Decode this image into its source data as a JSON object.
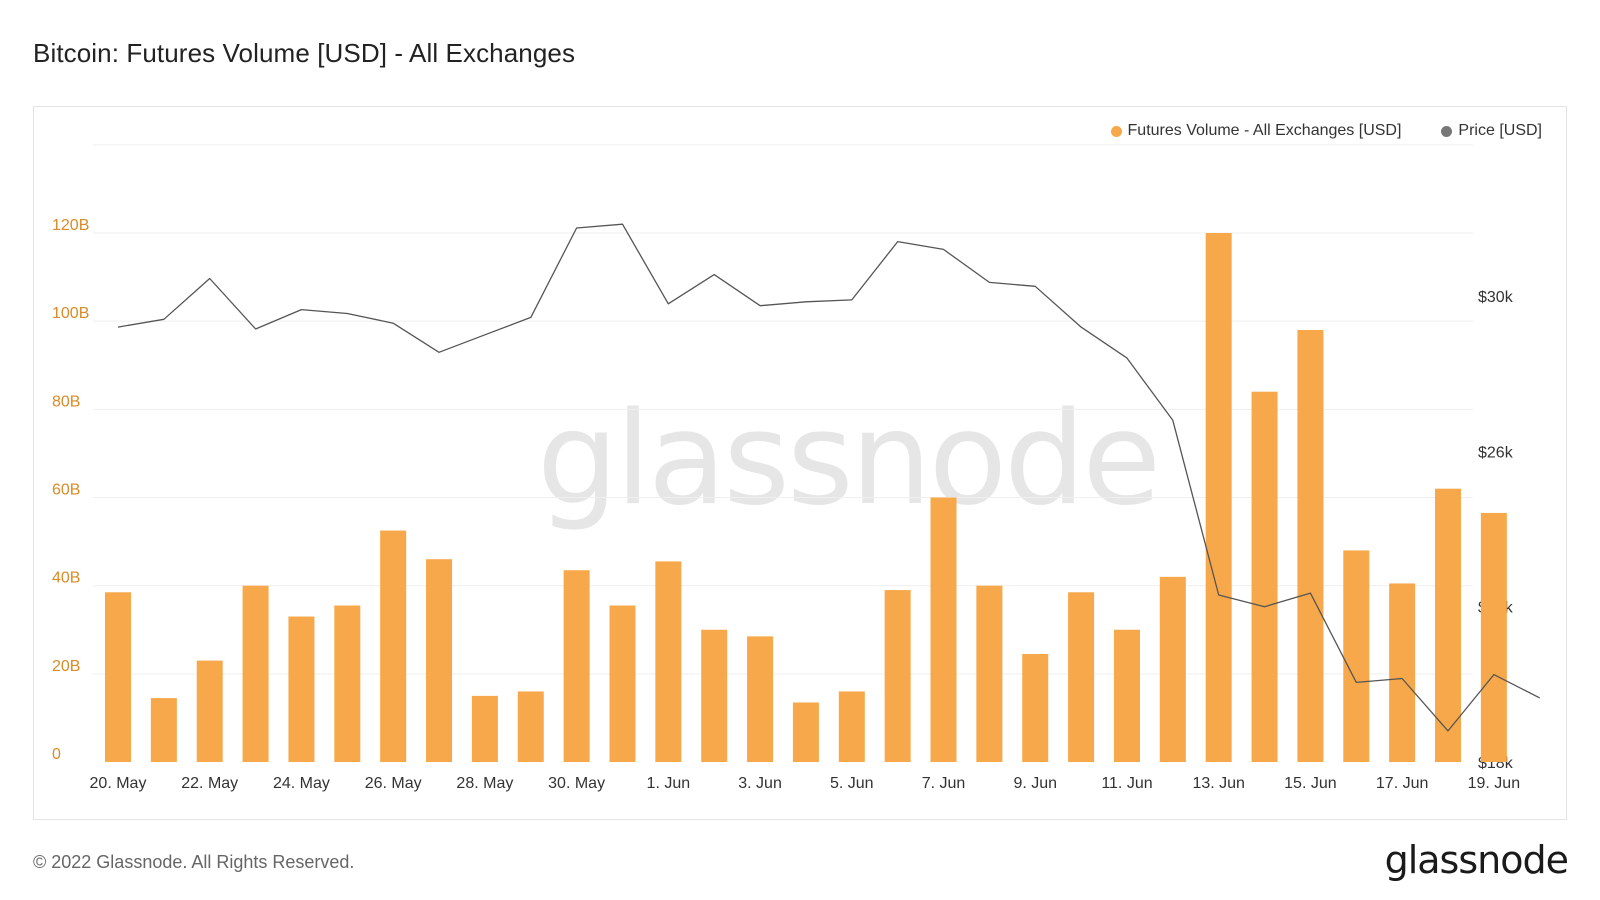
{
  "title": "Bitcoin: Futures Volume [USD] - All Exchanges",
  "legend": {
    "volume_label": "Futures Volume - All Exchanges [USD]",
    "price_label": "Price [USD]"
  },
  "watermark": "glassnode",
  "footer": {
    "copyright": "© 2022 Glassnode. All Rights Reserved.",
    "logo": "glassnode"
  },
  "colors": {
    "bar": "#f7a84a",
    "line": "#555555",
    "left_axis": "#d98b25",
    "right_axis": "#333333"
  },
  "chart_data": {
    "type": "bar",
    "x": [
      "2022-05-20",
      "2022-05-21",
      "2022-05-22",
      "2022-05-23",
      "2022-05-24",
      "2022-05-25",
      "2022-05-26",
      "2022-05-27",
      "2022-05-28",
      "2022-05-29",
      "2022-05-30",
      "2022-05-31",
      "2022-06-01",
      "2022-06-02",
      "2022-06-03",
      "2022-06-04",
      "2022-06-05",
      "2022-06-06",
      "2022-06-07",
      "2022-06-08",
      "2022-06-09",
      "2022-06-10",
      "2022-06-11",
      "2022-06-12",
      "2022-06-13",
      "2022-06-14",
      "2022-06-15",
      "2022-06-16",
      "2022-06-17",
      "2022-06-18",
      "2022-06-19",
      "2022-06-20"
    ],
    "x_tick_labels": [
      "20. May",
      "22. May",
      "24. May",
      "26. May",
      "28. May",
      "30. May",
      "1. Jun",
      "3. Jun",
      "5. Jun",
      "7. Jun",
      "9. Jun",
      "11. Jun",
      "13. Jun",
      "15. Jun",
      "17. Jun",
      "19. Jun"
    ],
    "series": [
      {
        "name": "Futures Volume - All Exchanges [USD]",
        "type": "bar",
        "axis": "left",
        "unit": "B",
        "values": [
          38.5,
          14.5,
          23,
          40,
          33,
          35.5,
          52.5,
          46,
          15,
          16,
          43.5,
          35.5,
          45.5,
          30,
          28.5,
          13.5,
          16,
          39,
          60,
          40,
          24.5,
          38.5,
          30,
          42,
          120,
          84,
          98,
          48,
          40.5,
          62,
          56.5,
          null
        ]
      },
      {
        "name": "Price [USD]",
        "type": "line",
        "axis": "right",
        "values": [
          29200,
          29400,
          30450,
          29150,
          29650,
          29550,
          29300,
          28550,
          29000,
          29450,
          31750,
          31850,
          29800,
          30550,
          29750,
          29850,
          29900,
          31400,
          31200,
          30350,
          30250,
          29200,
          28400,
          26800,
          22300,
          22000,
          22350,
          20050,
          20150,
          18800,
          20250,
          19650
        ]
      }
    ],
    "left_axis": {
      "ticks": [
        "0",
        "20B",
        "40B",
        "60B",
        "80B",
        "100B",
        "120B"
      ],
      "range": [
        0,
        140
      ]
    },
    "right_axis": {
      "ticks": [
        "$18k",
        "$22k",
        "$26k",
        "$30k"
      ],
      "range": [
        18000,
        30000
      ]
    },
    "grid": true,
    "legend_position": "top-right"
  }
}
